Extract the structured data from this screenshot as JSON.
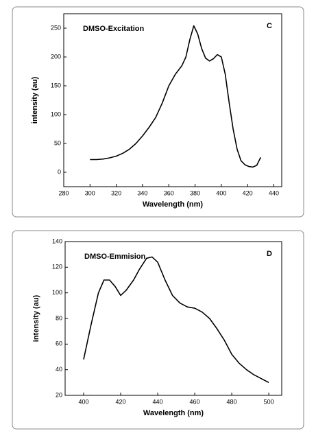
{
  "chart_data": [
    {
      "type": "line",
      "panel_label": "C",
      "annotation": "DMSO-Excitation",
      "x_label": "Wavelength (nm)",
      "y_label": "intensity (au)",
      "xlim": [
        280,
        446
      ],
      "ylim": [
        -25,
        275
      ],
      "xticks": [
        280,
        300,
        320,
        340,
        360,
        380,
        400,
        420,
        440
      ],
      "yticks": [
        0,
        50,
        100,
        150,
        200,
        250
      ],
      "series": [
        {
          "color": "#000000",
          "x": [
            300,
            305,
            310,
            315,
            320,
            325,
            330,
            335,
            340,
            345,
            350,
            355,
            360,
            365,
            370,
            373,
            376,
            379,
            382,
            385,
            388,
            391,
            394,
            397,
            400,
            403,
            406,
            409,
            412,
            415,
            418,
            421,
            424,
            427,
            430
          ],
          "values": [
            22,
            22,
            23,
            25,
            28,
            33,
            40,
            50,
            63,
            78,
            95,
            120,
            150,
            170,
            185,
            200,
            230,
            254,
            240,
            215,
            198,
            193,
            197,
            204,
            200,
            170,
            120,
            75,
            40,
            20,
            13,
            10,
            9,
            12,
            26
          ]
        }
      ]
    },
    {
      "type": "line",
      "panel_label": "D",
      "annotation": "DMSO-Emmision",
      "x_label": "Wavelength (nm)",
      "y_label": "intensity (au)",
      "xlim": [
        390,
        507
      ],
      "ylim": [
        20,
        140
      ],
      "xticks": [
        400,
        420,
        440,
        460,
        480,
        500
      ],
      "yticks": [
        20,
        40,
        60,
        80,
        100,
        120,
        140
      ],
      "series": [
        {
          "color": "#000000",
          "x": [
            400,
            404,
            408,
            411,
            414,
            417,
            420,
            423,
            427,
            430,
            434,
            437,
            440,
            444,
            448,
            452,
            456,
            460,
            464,
            468,
            472,
            476,
            480,
            484,
            488,
            492,
            496,
            500
          ],
          "values": [
            48,
            75,
            100,
            110,
            110,
            105,
            98,
            102,
            110,
            118,
            127,
            128,
            124,
            110,
            98,
            92,
            89,
            88,
            85,
            80,
            72,
            63,
            52,
            45,
            40,
            36,
            33,
            30
          ]
        }
      ]
    }
  ]
}
